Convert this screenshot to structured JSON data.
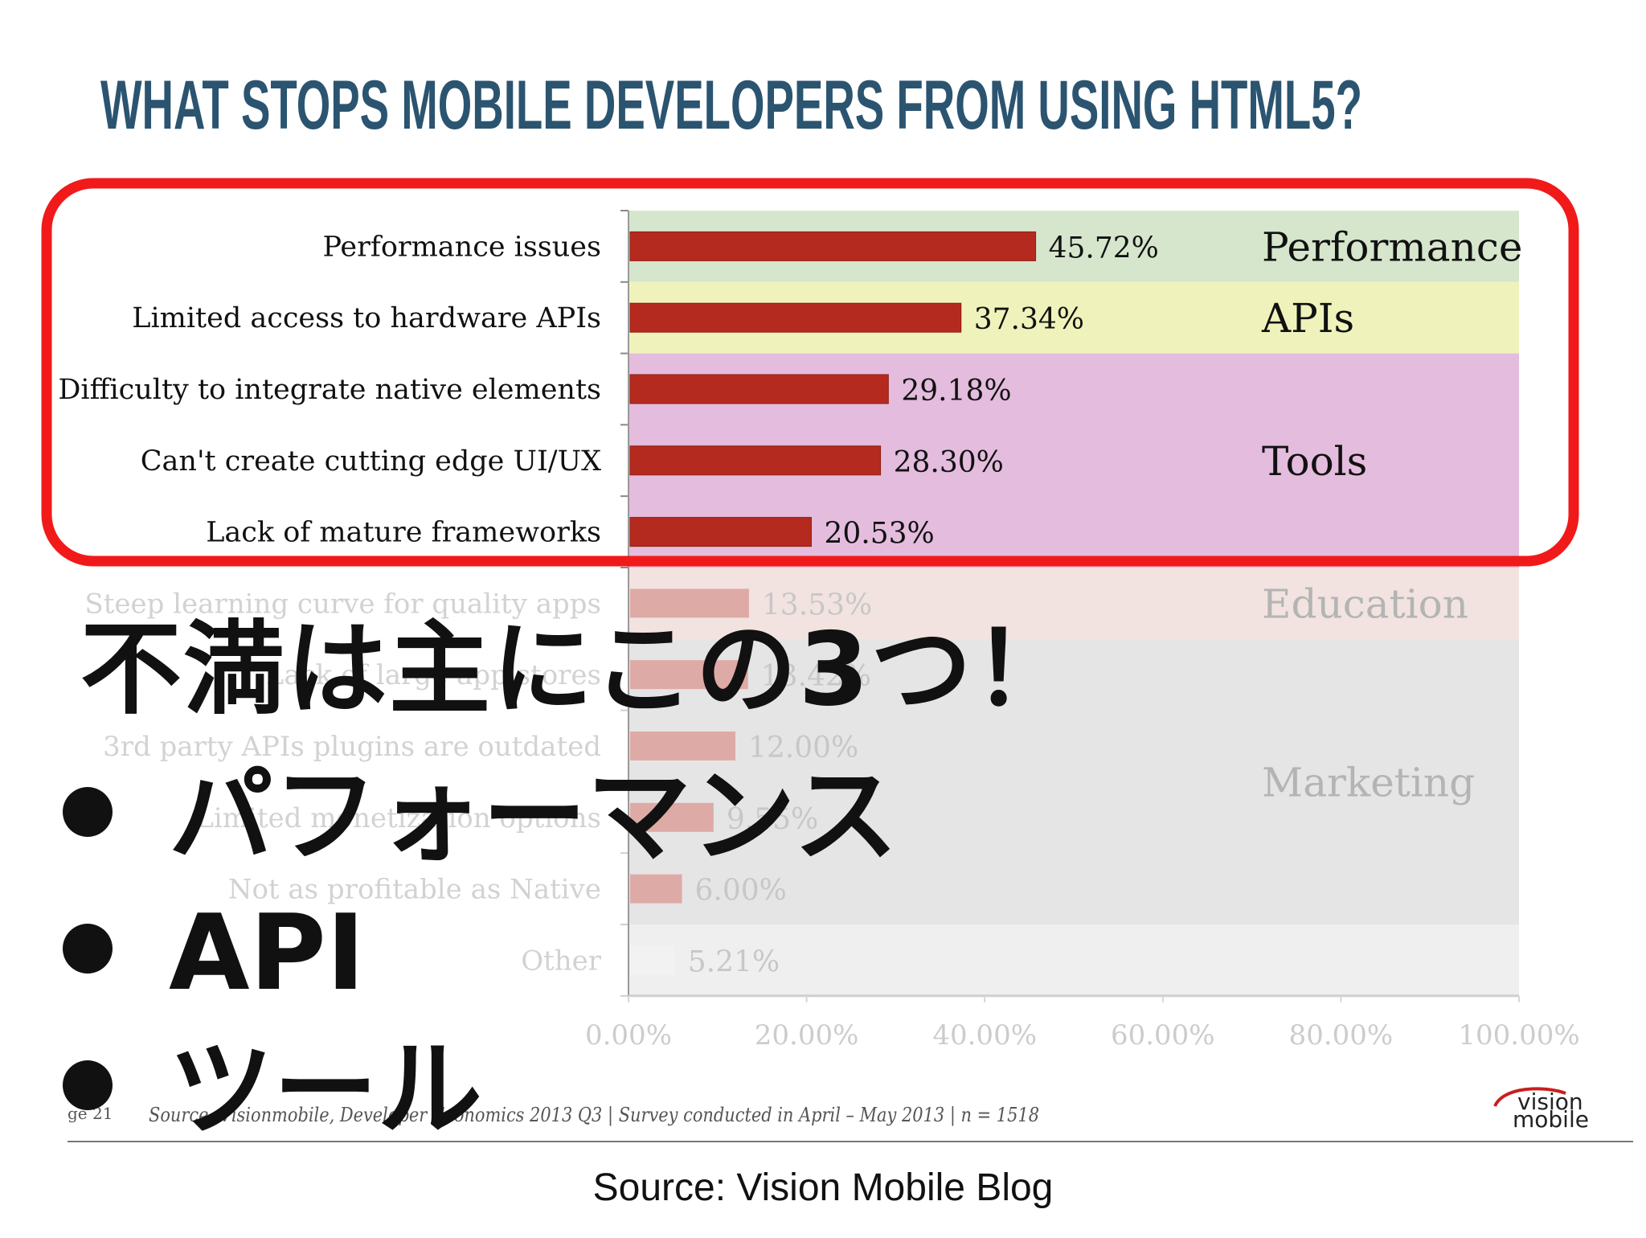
{
  "slide": {
    "title": "WHAT STOPS MOBILE DEVELOPERS FROM USING HTML5?",
    "page_label": "ge 21",
    "citation": "Source: Visionmobile, Developer Economics 2013 Q3 | Survey conducted in April – May 2013 | n = 1518",
    "logo_top": "vision",
    "logo_bottom": "mobile",
    "colors": {
      "title": "#2b5470",
      "bar": "#b52a1f",
      "highlight_border": "#f11a1a",
      "band_performance": "#d6e6cc",
      "band_apis": "#eff3bb",
      "band_tools": "#e4bcdd",
      "band_education": "#eddad6",
      "band_marketing": "#dcdcdc",
      "band_other": "#e9e9e9"
    }
  },
  "overlay": {
    "headline": "不満は主にこの3つ！",
    "bullets": [
      "パフォーマンス",
      "API",
      "ツール"
    ],
    "source_caption": "Source: Vision Mobile Blog"
  },
  "chart_data": {
    "type": "bar",
    "orientation": "horizontal",
    "title": "WHAT STOPS MOBILE DEVELOPERS FROM USING HTML5?",
    "categories": [
      "Performance issues",
      "Limited access to hardware APIs",
      "Difficulty to integrate native elements",
      "Can't create cutting edge UI/UX",
      "Lack of mature frameworks",
      "Steep learning curve for quality apps",
      "Lack of large app stores",
      "3rd party APIs plugins are outdated",
      "Limited monetization options",
      "Not as profitable as Native",
      "Other"
    ],
    "values": [
      45.72,
      37.34,
      29.18,
      28.3,
      20.53,
      13.53,
      13.42,
      12.0,
      9.55,
      6.0,
      5.21
    ],
    "value_labels": [
      "45.72%",
      "37.34%",
      "29.18%",
      "28.30%",
      "20.53%",
      "13.53%",
      "13.42%",
      "12.00%",
      "9.55%",
      "6.00%",
      "5.21%"
    ],
    "highlighted_count": 5,
    "groups": [
      {
        "name": "Performance",
        "rows": [
          0
        ]
      },
      {
        "name": "APIs",
        "rows": [
          1
        ]
      },
      {
        "name": "Tools",
        "rows": [
          2,
          3,
          4
        ]
      },
      {
        "name": "Education",
        "rows": [
          5
        ]
      },
      {
        "name": "Marketing",
        "rows": [
          6,
          7,
          8,
          9
        ]
      },
      {
        "name": "",
        "rows": [
          10
        ]
      }
    ],
    "xlim": [
      0,
      100
    ],
    "xticks": [
      "0.00%",
      "20.00%",
      "40.00%",
      "60.00%",
      "80.00%",
      "100.00%"
    ],
    "grid": false,
    "legend": "none"
  }
}
